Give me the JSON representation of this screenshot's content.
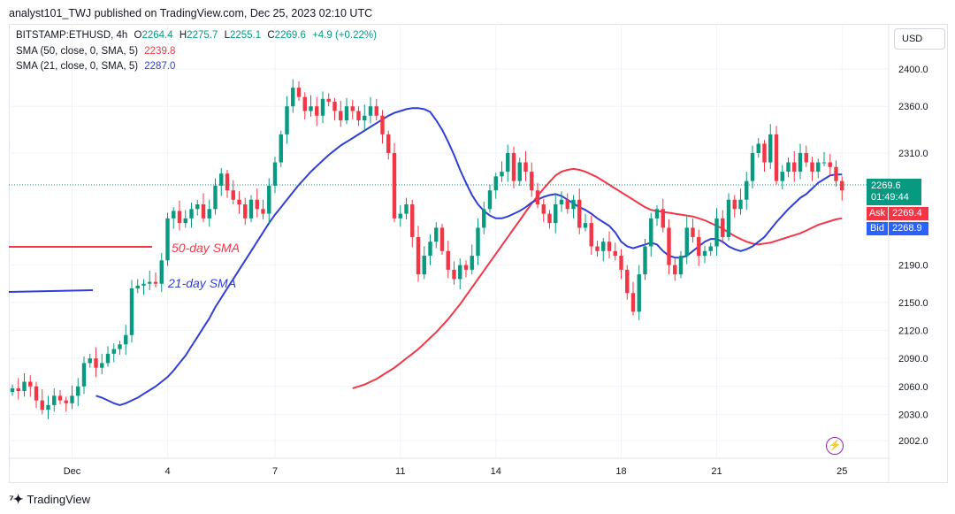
{
  "header": {
    "publisher": "analyst101_TWJ published on TradingView.com, Dec 25, 2023 02:10 UTC"
  },
  "legend": {
    "symbol": "BITSTAMP:ETHUSD, 4h",
    "open_label": "O",
    "open": "2264.4",
    "high_label": "H",
    "high": "2275.7",
    "low_label": "L",
    "low": "2255.1",
    "close_label": "C",
    "close": "2269.6",
    "change": "+4.9 (+0.22%)",
    "sma50_label": "SMA (50, close, 0, SMA, 5)",
    "sma50_value": "2239.8",
    "sma21_label": "SMA (21, close, 0, SMA, 5)",
    "sma21_value": "2287.0"
  },
  "price_axis": {
    "currency": "USD"
  },
  "price_tags": {
    "last": "2269.6",
    "countdown": "01:49:44",
    "ask_label": "Ask",
    "ask": "2269.4",
    "bid_label": "Bid",
    "bid": "2268.9"
  },
  "annotations": {
    "sma50": "50-day SMA",
    "sma21": "21-day SMA"
  },
  "footer": {
    "brand": "TradingView"
  },
  "colors": {
    "up": "#089981",
    "down": "#f23645",
    "sma50": "#f23645",
    "sma21": "#2f3fd8",
    "bid": "#2962ff",
    "ask": "#f23645",
    "last": "#089981"
  },
  "chart_data": {
    "type": "candlestick",
    "symbol": "BITSTAMP:ETHUSD",
    "timeframe": "4h",
    "ylim": [
      1980,
      2430
    ],
    "y_ticks": [
      2002.0,
      2030.0,
      2060.0,
      2090.0,
      2120.0,
      2150.0,
      2190.0,
      2310.0,
      2360.0,
      2400.0
    ],
    "x_ticks": [
      {
        "label": "Dec",
        "bar": 10
      },
      {
        "label": "4",
        "bar": 26
      },
      {
        "label": "7",
        "bar": 44
      },
      {
        "label": "11",
        "bar": 65
      },
      {
        "label": "14",
        "bar": 81
      },
      {
        "label": "18",
        "bar": 102
      },
      {
        "label": "21",
        "bar": 118
      },
      {
        "label": "25",
        "bar": 139
      }
    ],
    "close": [
      2058,
      2055,
      2065,
      2060,
      2045,
      2035,
      2040,
      2050,
      2045,
      2042,
      2050,
      2060,
      2085,
      2090,
      2080,
      2085,
      2095,
      2100,
      2105,
      2115,
      2165,
      2168,
      2170,
      2172,
      2170,
      2195,
      2240,
      2248,
      2235,
      2240,
      2250,
      2255,
      2240,
      2250,
      2275,
      2288,
      2270,
      2260,
      2255,
      2240,
      2260,
      2250,
      2245,
      2275,
      2300,
      2330,
      2360,
      2380,
      2370,
      2355,
      2360,
      2350,
      2368,
      2365,
      2355,
      2345,
      2360,
      2355,
      2345,
      2350,
      2360,
      2350,
      2330,
      2310,
      2240,
      2245,
      2255,
      2220,
      2180,
      2200,
      2215,
      2230,
      2205,
      2185,
      2175,
      2190,
      2185,
      2200,
      2230,
      2250,
      2270,
      2285,
      2290,
      2310,
      2280,
      2300,
      2290,
      2270,
      2255,
      2245,
      2235,
      2255,
      2260,
      2250,
      2260,
      2230,
      2235,
      2210,
      2205,
      2215,
      2205,
      2200,
      2185,
      2160,
      2140,
      2180,
      2210,
      2240,
      2250,
      2230,
      2190,
      2180,
      2200,
      2230,
      2220,
      2200,
      2205,
      2210,
      2240,
      2220,
      2260,
      2250,
      2260,
      2280,
      2310,
      2320,
      2300,
      2330,
      2280,
      2290,
      2300,
      2290,
      2310,
      2300,
      2290,
      2300,
      2300,
      2295,
      2280,
      2270
    ],
    "sma21": [
      2050,
      2048,
      2045,
      2042,
      2040,
      2042,
      2045,
      2048,
      2052,
      2056,
      2060,
      2065,
      2070,
      2077,
      2085,
      2093,
      2103,
      2113,
      2123,
      2133,
      2145,
      2155,
      2165,
      2175,
      2185,
      2195,
      2205,
      2215,
      2225,
      2235,
      2244,
      2252,
      2260,
      2268,
      2276,
      2283,
      2290,
      2296,
      2302,
      2308,
      2313,
      2318,
      2322,
      2326,
      2330,
      2334,
      2338,
      2342,
      2346,
      2350,
      2353,
      2355,
      2357,
      2358,
      2358,
      2357,
      2354,
      2345,
      2335,
      2322,
      2308,
      2292,
      2278,
      2265,
      2255,
      2248,
      2243,
      2240,
      2240,
      2242,
      2245,
      2248,
      2252,
      2257,
      2260,
      2263,
      2265,
      2266,
      2264,
      2260,
      2256,
      2252,
      2249,
      2245,
      2240,
      2236,
      2232,
      2225,
      2215,
      2210,
      2208,
      2210,
      2212,
      2214,
      2212,
      2205,
      2200,
      2198,
      2198,
      2200,
      2205,
      2210,
      2215,
      2218,
      2218,
      2215,
      2210,
      2207,
      2205,
      2207,
      2210,
      2215,
      2220,
      2228,
      2236,
      2243,
      2250,
      2256,
      2262,
      2266,
      2272,
      2278,
      2282,
      2286,
      2287,
      2287
    ],
    "sma50": [
      2058,
      2060,
      2062,
      2065,
      2068,
      2072,
      2076,
      2080,
      2085,
      2090,
      2095,
      2100,
      2106,
      2112,
      2118,
      2125,
      2132,
      2140,
      2148,
      2157,
      2166,
      2175,
      2184,
      2193,
      2202,
      2211,
      2220,
      2229,
      2238,
      2247,
      2256,
      2264,
      2272,
      2279,
      2286,
      2290,
      2292,
      2293,
      2292,
      2290,
      2287,
      2284,
      2280,
      2276,
      2272,
      2268,
      2264,
      2260,
      2256,
      2252,
      2249,
      2248,
      2247,
      2246,
      2245,
      2244,
      2243,
      2242,
      2240,
      2238,
      2235,
      2232,
      2229,
      2225,
      2221,
      2218,
      2215,
      2213,
      2212,
      2213,
      2214,
      2216,
      2218,
      2220,
      2222,
      2224,
      2227,
      2230,
      2233,
      2235,
      2237,
      2239,
      2240
    ]
  }
}
